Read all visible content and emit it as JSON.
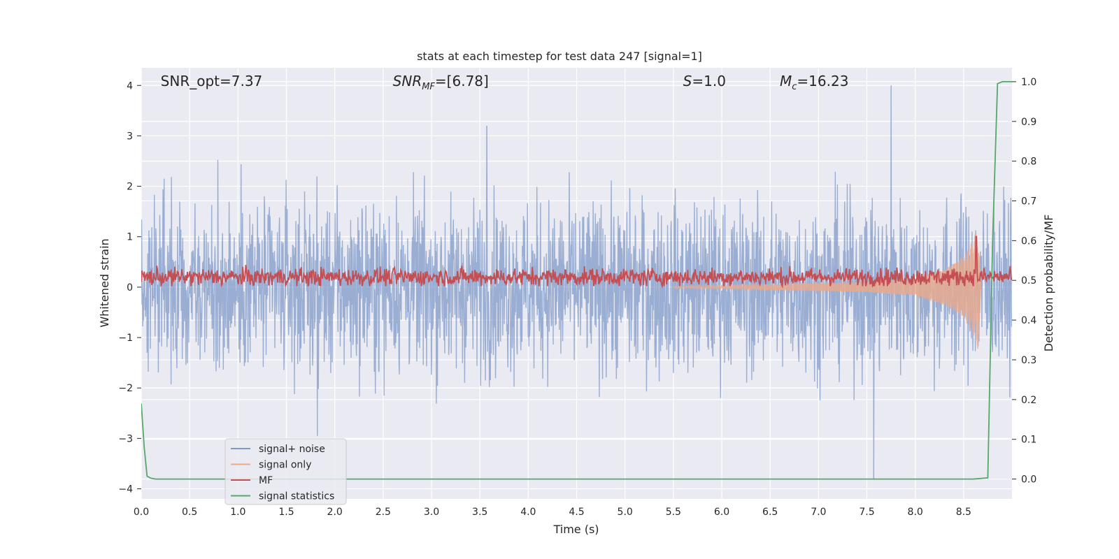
{
  "chart_data": {
    "type": "line",
    "title": "stats at each timestep for test data 247 [signal=1]",
    "xlabel": "Time (s)",
    "ylabel": "Whitened strain",
    "ylabel_right": "Detection probability/MF",
    "xlim": [
      0.0,
      9.0
    ],
    "ylim": [
      -4.2,
      4.35
    ],
    "ylim_right": [
      -0.05,
      1.035
    ],
    "x_ticks": [
      "0.0",
      "0.5",
      "1.0",
      "1.5",
      "2.0",
      "2.5",
      "3.0",
      "3.5",
      "4.0",
      "4.5",
      "5.0",
      "5.5",
      "6.0",
      "6.5",
      "7.0",
      "7.5",
      "8.0",
      "8.5"
    ],
    "y_ticks": [
      "−4",
      "−3",
      "−2",
      "−1",
      "0",
      "1",
      "2",
      "3",
      "4"
    ],
    "y_ticks_right": [
      "0.0",
      "0.1",
      "0.2",
      "0.3",
      "0.4",
      "0.5",
      "0.6",
      "0.7",
      "0.8",
      "0.9",
      "1.0"
    ],
    "grid": true,
    "annotations": [
      {
        "text": "SNR_opt=7.37",
        "x": 0.2
      },
      {
        "text": "SNR",
        "sub": "MF",
        "rest": "=[6.78]",
        "x": 2.6,
        "italic": true
      },
      {
        "text": "S",
        "rest": "=1.0",
        "x": 5.6,
        "italic": true
      },
      {
        "text": "M",
        "sub": "c",
        "rest": "=16.23",
        "x": 6.6,
        "italic": true
      }
    ],
    "legend": {
      "placement": "lower-left",
      "entries": [
        "signal+ noise",
        "signal only",
        "MF",
        "signal statistics"
      ]
    },
    "series": [
      {
        "name": "signal+ noise",
        "axis": "left",
        "color": "#7f9ac8",
        "description": "noise trace roughly within ±2.5 with spikes",
        "notable_peaks": [
          [
            3.57,
            3.2
          ],
          [
            7.75,
            4.0
          ],
          [
            7.57,
            -3.8
          ],
          [
            1.82,
            -2.95
          ]
        ]
      },
      {
        "name": "signal only",
        "axis": "left",
        "color": "#e8a98e",
        "description": "chirp growing toward merger",
        "envelope": [
          [
            5.5,
            0.02
          ],
          [
            6.5,
            0.05
          ],
          [
            7.5,
            0.1
          ],
          [
            8.0,
            0.18
          ],
          [
            8.3,
            0.35
          ],
          [
            8.5,
            0.6
          ],
          [
            8.6,
            0.95
          ],
          [
            8.65,
            1.25
          ],
          [
            8.68,
            0.0
          ]
        ]
      },
      {
        "name": "MF",
        "axis": "left",
        "color": "#c44e52",
        "description": "matched filter output around 0.2",
        "baseline": 0.2,
        "peak": [
          8.63,
          1.0
        ]
      },
      {
        "name": "signal statistics",
        "axis": "right",
        "color": "#55a868",
        "x": [
          0.0,
          0.03,
          0.06,
          0.1,
          0.15,
          1.0,
          2.0,
          3.0,
          4.0,
          5.0,
          6.0,
          7.0,
          8.0,
          8.6,
          8.75,
          8.8,
          8.85,
          8.9,
          9.0
        ],
        "y": [
          0.19,
          0.08,
          0.007,
          0.002,
          0.0,
          0.0,
          0.0,
          0.0,
          0.0,
          0.0,
          0.0,
          0.0,
          0.0,
          0.0,
          0.003,
          0.6,
          0.995,
          1.0,
          1.0
        ]
      }
    ]
  }
}
